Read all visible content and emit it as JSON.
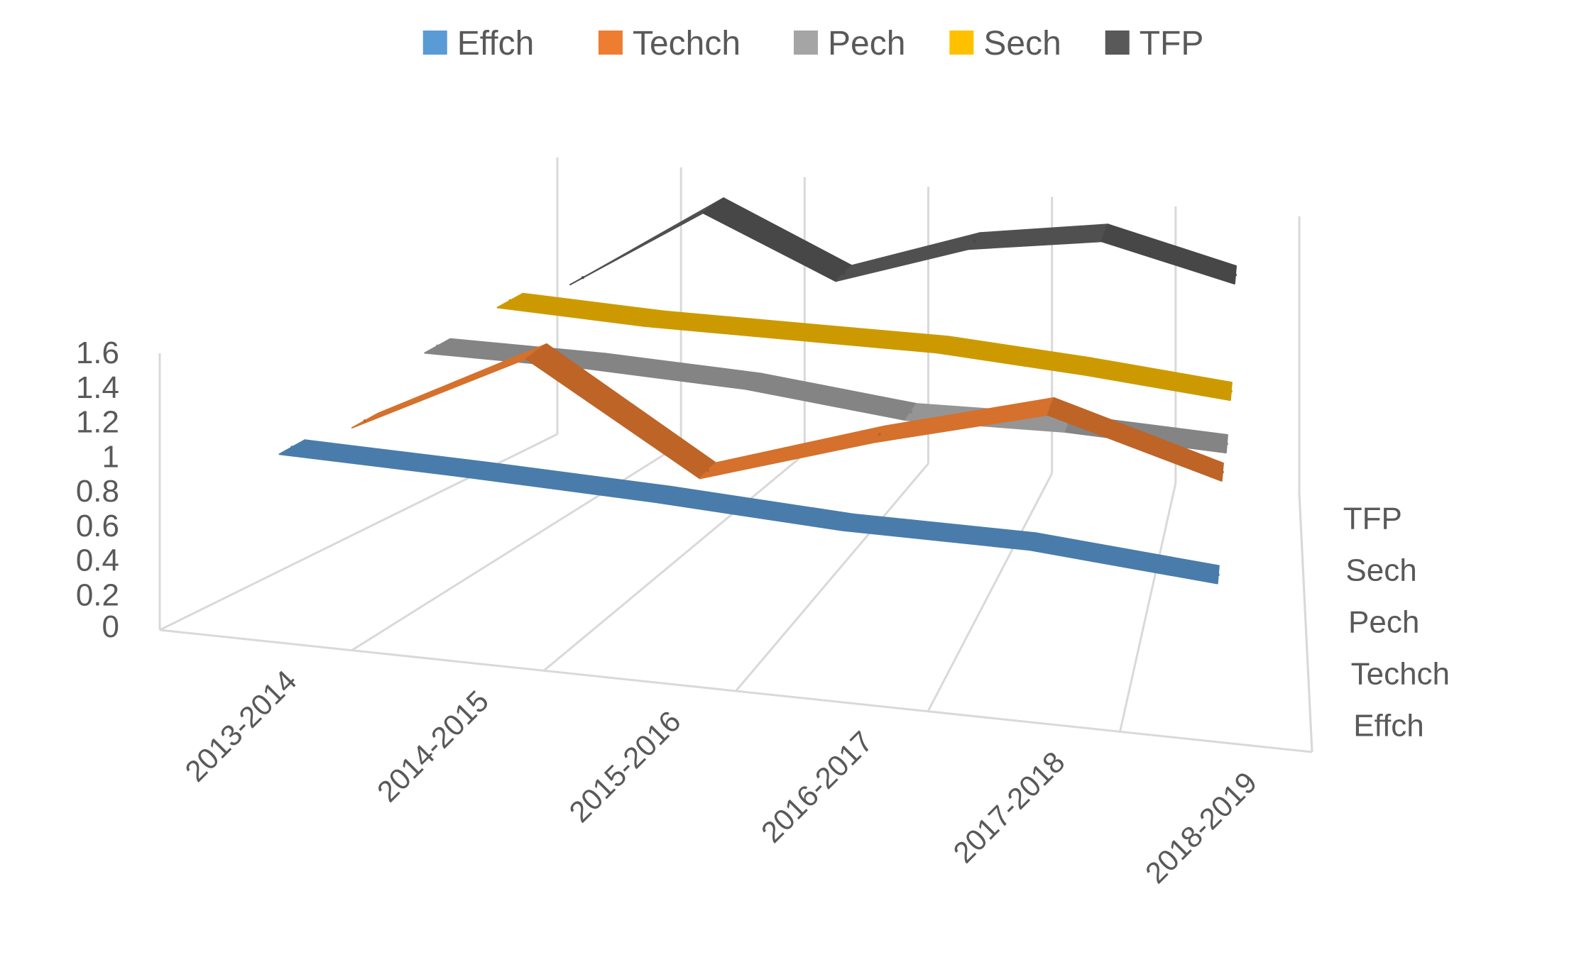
{
  "chart_data": {
    "type": "line",
    "view": "3d",
    "title": "",
    "xlabel": "",
    "ylabel": "",
    "ylim": [
      0,
      1.6
    ],
    "yticks": [
      "0",
      "0.2",
      "0.4",
      "0.6",
      "0.8",
      "1",
      "1.2",
      "1.4",
      "1.6"
    ],
    "categories": [
      "2013-2014",
      "2014-2015",
      "2015-2016",
      "2016-2017",
      "2017-2018",
      "2018-2019"
    ],
    "depth_labels": [
      "Effch",
      "Techch",
      "Pech",
      "Sech",
      "TFP"
    ],
    "legend_position": "top",
    "gridlines": true,
    "series": [
      {
        "name": "Effch",
        "color": "#5B9BD5",
        "values": [
          1.0,
          0.98,
          0.95,
          0.9,
          0.9,
          0.82
        ]
      },
      {
        "name": "Techch",
        "color": "#ED7D31",
        "values": [
          0.92,
          1.42,
          0.83,
          1.14,
          1.4,
          1.12
        ]
      },
      {
        "name": "Pech",
        "color": "#A5A5A5",
        "values": [
          1.12,
          1.12,
          1.09,
          1.0,
          1.02,
          0.99
        ]
      },
      {
        "name": "Sech",
        "color": "#FFC000",
        "values": [
          1.15,
          1.12,
          1.12,
          1.12,
          1.07,
          1.0
        ]
      },
      {
        "name": "TFP",
        "color": "#595959",
        "values": [
          1.05,
          1.53,
          1.2,
          1.45,
          1.56,
          1.38
        ]
      }
    ]
  }
}
